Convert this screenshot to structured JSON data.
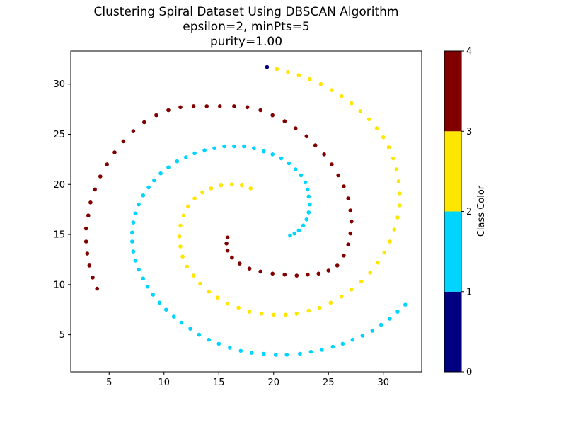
{
  "chart_data": {
    "type": "scatter",
    "title_lines": [
      "Clustering Spiral Dataset Using DBSCAN Algorithm",
      "epsilon=2, minPts=5",
      "purity=1.00"
    ],
    "xlabel": "",
    "ylabel": "",
    "xlim": [
      1.5,
      33.5
    ],
    "ylim": [
      1.3,
      33.3
    ],
    "xticks": [
      5,
      10,
      15,
      20,
      25,
      30
    ],
    "yticks": [
      5,
      10,
      15,
      20,
      25,
      30
    ],
    "grid": false,
    "colorbar": {
      "label": "Class Color",
      "range": [
        0,
        4
      ],
      "ticks": [
        0,
        1,
        2,
        3,
        4
      ],
      "colors": [
        "#000080",
        "#00d5ff",
        "#ffe600",
        "#800000"
      ]
    },
    "series": [
      {
        "class": 0,
        "color": "#000080",
        "points": [
          [
            19.4,
            31.7
          ]
        ]
      },
      {
        "class": 1,
        "color": "#00d5ff",
        "points": [
          [
            32.0,
            8.0
          ],
          [
            31.3,
            7.3
          ],
          [
            30.6,
            6.6
          ],
          [
            29.8,
            6.0
          ],
          [
            29.0,
            5.4
          ],
          [
            28.1,
            4.9
          ],
          [
            27.2,
            4.5
          ],
          [
            26.3,
            4.1
          ],
          [
            25.4,
            3.8
          ],
          [
            24.4,
            3.5
          ],
          [
            23.4,
            3.3
          ],
          [
            22.4,
            3.1
          ],
          [
            21.2,
            3.0
          ],
          [
            20.2,
            3.0
          ],
          [
            19.1,
            3.1
          ],
          [
            18.0,
            3.2
          ],
          [
            17.0,
            3.4
          ],
          [
            16.0,
            3.7
          ],
          [
            15.0,
            4.1
          ],
          [
            14.1,
            4.5
          ],
          [
            13.2,
            5.0
          ],
          [
            12.4,
            5.6
          ],
          [
            11.6,
            6.2
          ],
          [
            10.9,
            6.8
          ],
          [
            10.2,
            7.5
          ],
          [
            9.6,
            8.2
          ],
          [
            9.0,
            9.0
          ],
          [
            8.5,
            9.8
          ],
          [
            8.1,
            10.6
          ],
          [
            7.7,
            11.5
          ],
          [
            7.4,
            12.4
          ],
          [
            7.2,
            13.3
          ],
          [
            7.1,
            14.3
          ],
          [
            7.1,
            15.2
          ],
          [
            7.2,
            16.2
          ],
          [
            7.4,
            17.1
          ],
          [
            7.7,
            18.0
          ],
          [
            8.1,
            18.9
          ],
          [
            8.6,
            19.7
          ],
          [
            9.1,
            20.4
          ],
          [
            9.7,
            21.1
          ],
          [
            10.4,
            21.7
          ],
          [
            11.2,
            22.3
          ],
          [
            12.0,
            22.7
          ],
          [
            12.8,
            23.1
          ],
          [
            13.7,
            23.4
          ],
          [
            14.6,
            23.6
          ],
          [
            15.5,
            23.8
          ],
          [
            16.4,
            23.8
          ],
          [
            17.3,
            23.8
          ],
          [
            18.2,
            23.6
          ],
          [
            19.1,
            23.3
          ],
          [
            19.9,
            23.0
          ],
          [
            20.7,
            22.6
          ],
          [
            21.4,
            22.1
          ],
          [
            22.0,
            21.5
          ],
          [
            22.5,
            20.9
          ],
          [
            22.9,
            20.2
          ],
          [
            23.1,
            19.5
          ],
          [
            23.2,
            18.8
          ],
          [
            23.3,
            18.0
          ],
          [
            23.2,
            17.2
          ],
          [
            23.0,
            16.5
          ],
          [
            22.7,
            15.9
          ],
          [
            22.3,
            15.4
          ],
          [
            21.9,
            15.1
          ],
          [
            21.5,
            14.9
          ]
        ]
      },
      {
        "class": 2,
        "color": "#ffe600",
        "points": [
          [
            20.3,
            31.5
          ],
          [
            21.3,
            31.2
          ],
          [
            22.3,
            30.9
          ],
          [
            23.3,
            30.5
          ],
          [
            24.3,
            30.0
          ],
          [
            25.3,
            29.4
          ],
          [
            26.2,
            28.8
          ],
          [
            27.1,
            28.1
          ],
          [
            27.9,
            27.3
          ],
          [
            28.7,
            26.5
          ],
          [
            29.4,
            25.6
          ],
          [
            30.0,
            24.7
          ],
          [
            30.5,
            23.7
          ],
          [
            30.9,
            22.6
          ],
          [
            31.2,
            21.5
          ],
          [
            31.4,
            20.3
          ],
          [
            31.5,
            19.1
          ],
          [
            31.5,
            17.9
          ],
          [
            31.3,
            16.7
          ],
          [
            31.0,
            15.5
          ],
          [
            30.6,
            14.3
          ],
          [
            30.1,
            13.2
          ],
          [
            29.5,
            12.2
          ],
          [
            28.8,
            11.2
          ],
          [
            28.0,
            10.3
          ],
          [
            27.1,
            9.5
          ],
          [
            26.2,
            8.8
          ],
          [
            25.2,
            8.2
          ],
          [
            24.2,
            7.7
          ],
          [
            23.2,
            7.4
          ],
          [
            22.1,
            7.1
          ],
          [
            21.1,
            7.0
          ],
          [
            20.0,
            7.0
          ],
          [
            18.9,
            7.1
          ],
          [
            17.8,
            7.3
          ],
          [
            16.8,
            7.7
          ],
          [
            15.8,
            8.1
          ],
          [
            14.9,
            8.7
          ],
          [
            14.1,
            9.3
          ],
          [
            13.3,
            10.1
          ],
          [
            12.7,
            10.9
          ],
          [
            12.1,
            11.8
          ],
          [
            11.7,
            12.8
          ],
          [
            11.5,
            13.8
          ],
          [
            11.4,
            14.8
          ],
          [
            11.5,
            15.9
          ],
          [
            11.8,
            16.9
          ],
          [
            12.2,
            17.8
          ],
          [
            12.8,
            18.6
          ],
          [
            13.5,
            19.2
          ],
          [
            14.3,
            19.6
          ],
          [
            15.2,
            19.9
          ],
          [
            16.2,
            20.0
          ],
          [
            17.1,
            19.9
          ],
          [
            17.9,
            19.6
          ]
        ]
      },
      {
        "class": 3,
        "color": "#800000",
        "points": [
          [
            3.9,
            9.6
          ],
          [
            3.5,
            10.7
          ],
          [
            3.2,
            11.9
          ],
          [
            3.0,
            13.1
          ],
          [
            2.9,
            14.3
          ],
          [
            2.9,
            15.6
          ],
          [
            3.1,
            16.9
          ],
          [
            3.3,
            18.2
          ],
          [
            3.7,
            19.5
          ],
          [
            4.2,
            20.8
          ],
          [
            4.8,
            22.0
          ],
          [
            5.5,
            23.2
          ],
          [
            6.3,
            24.3
          ],
          [
            7.2,
            25.3
          ],
          [
            8.2,
            26.2
          ],
          [
            9.3,
            26.9
          ],
          [
            10.4,
            27.4
          ],
          [
            11.5,
            27.7
          ],
          [
            12.7,
            27.8
          ],
          [
            13.9,
            27.8
          ],
          [
            15.1,
            27.8
          ],
          [
            16.4,
            27.8
          ],
          [
            17.6,
            27.7
          ],
          [
            18.8,
            27.4
          ],
          [
            19.9,
            26.9
          ],
          [
            21.0,
            26.3
          ],
          [
            22.0,
            25.6
          ],
          [
            23.0,
            24.8
          ],
          [
            23.8,
            23.9
          ],
          [
            24.6,
            23.0
          ],
          [
            25.3,
            22.0
          ],
          [
            25.9,
            20.9
          ],
          [
            26.4,
            19.8
          ],
          [
            26.8,
            18.6
          ],
          [
            27.0,
            17.4
          ],
          [
            27.1,
            16.3
          ],
          [
            27.0,
            15.1
          ],
          [
            26.8,
            14.0
          ],
          [
            26.4,
            12.9
          ],
          [
            25.8,
            11.9
          ],
          [
            25.0,
            11.4
          ],
          [
            24.1,
            11.1
          ],
          [
            23.1,
            11.0
          ],
          [
            22.1,
            10.9
          ],
          [
            21.0,
            11.0
          ],
          [
            19.9,
            11.1
          ],
          [
            18.8,
            11.3
          ],
          [
            17.8,
            11.6
          ],
          [
            16.9,
            12.1
          ],
          [
            16.2,
            12.7
          ],
          [
            15.8,
            13.4
          ],
          [
            15.7,
            14.1
          ],
          [
            15.8,
            14.7
          ]
        ]
      }
    ]
  }
}
